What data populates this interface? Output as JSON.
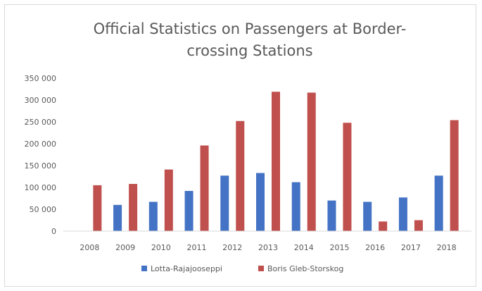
{
  "chart_data": {
    "type": "bar",
    "title_line1": "Official Statistics on Passengers at Border-",
    "title_line2": "crossing Stations",
    "categories": [
      "2008",
      "2009",
      "2010",
      "2011",
      "2012",
      "2013",
      "2014",
      "2015",
      "2016",
      "2017",
      "2018"
    ],
    "series": [
      {
        "name": "Lotta-Rajajooseppi",
        "color": "#4472c4",
        "values": [
          null,
          60000,
          67000,
          92000,
          127000,
          133000,
          112000,
          70000,
          67000,
          77000,
          127000
        ]
      },
      {
        "name": "Boris Gleb-Storskog",
        "color": "#c0504d",
        "values": [
          105000,
          108000,
          141000,
          196000,
          252000,
          319000,
          317000,
          248000,
          22000,
          25000,
          254000
        ]
      }
    ],
    "ylim": [
      0,
      350000
    ],
    "yticks": [
      0,
      50000,
      100000,
      150000,
      200000,
      250000,
      300000,
      350000
    ],
    "ytick_labels": [
      "0",
      "50 000",
      "100 000",
      "150 000",
      "200 000",
      "250 000",
      "300 000",
      "350 000"
    ],
    "grid": false,
    "legend_position": "bottom"
  }
}
